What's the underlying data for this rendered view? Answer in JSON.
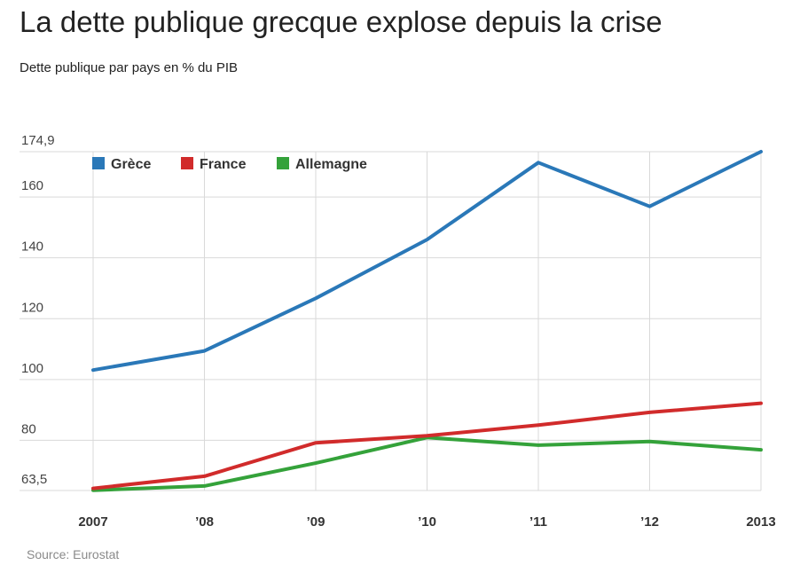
{
  "chart_data": {
    "type": "line",
    "title": "La dette publique grecque explose depuis la crise",
    "subtitle": "Dette publique par pays en % du PIB",
    "source": "Source: Eurostat",
    "categories": [
      "2007",
      "’08",
      "’09",
      "’10",
      "’11",
      "’12",
      "2013"
    ],
    "ylim": [
      63.5,
      174.9
    ],
    "yticks": [
      {
        "value": 174.9,
        "label": "174,9"
      },
      {
        "value": 160,
        "label": "160"
      },
      {
        "value": 140,
        "label": "140"
      },
      {
        "value": 120,
        "label": "120"
      },
      {
        "value": 100,
        "label": "100"
      },
      {
        "value": 80,
        "label": "80"
      },
      {
        "value": 63.5,
        "label": "63,5"
      }
    ],
    "grid": true,
    "legend_position": "top-left",
    "series": [
      {
        "name": "Grèce",
        "color": "#2a78b8",
        "values": [
          103.1,
          109.4,
          126.7,
          146.0,
          171.3,
          156.9,
          174.9
        ]
      },
      {
        "name": "France",
        "color": "#d12b2b",
        "values": [
          64.2,
          68.2,
          79.2,
          81.5,
          85.0,
          89.2,
          92.2
        ]
      },
      {
        "name": "Allemagne",
        "color": "#34a23a",
        "values": [
          63.6,
          65.0,
          72.5,
          80.9,
          78.4,
          79.6,
          76.9
        ]
      }
    ]
  }
}
